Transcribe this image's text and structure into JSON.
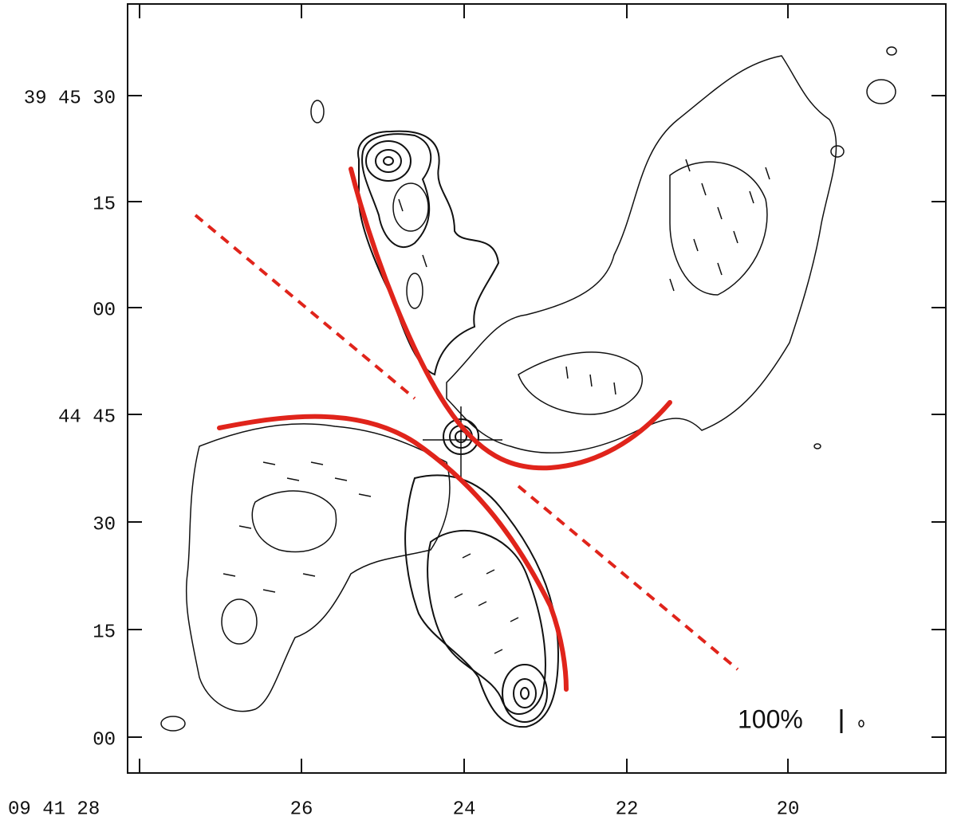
{
  "figure": {
    "y_axis_labels": [
      "39 45 30",
      "15",
      "00",
      "44 45",
      "30",
      "15",
      "00"
    ],
    "x_axis_labels": [
      "09 41 28",
      "26",
      "24",
      "22",
      "20"
    ],
    "scale_label": "100%"
  }
}
